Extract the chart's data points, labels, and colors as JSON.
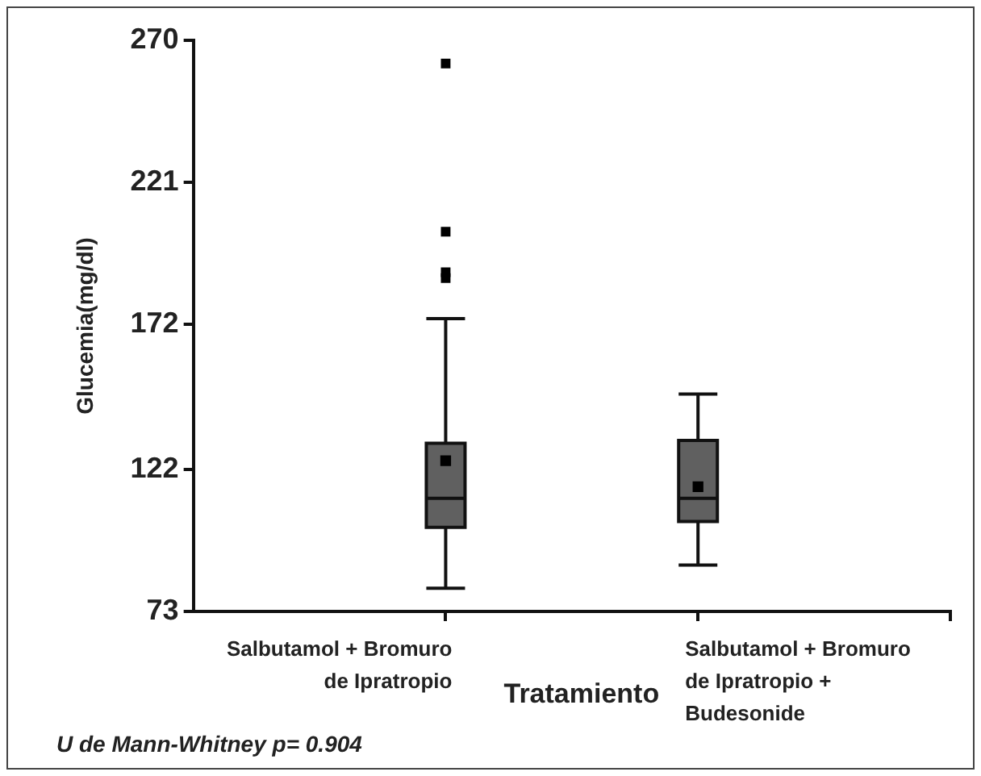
{
  "chart_data": {
    "type": "box",
    "ylabel": "Glucemia(mg/dl)",
    "xlabel": "Tratamiento",
    "categories": [
      "Salbutamol + Bromuro de Ipratropio",
      "Salbutamol + Bromuro de Ipratropio + Budesonide"
    ],
    "color": "#606060",
    "boxes": [
      {
        "low": 81,
        "q1": 102,
        "median": 112,
        "q3": 131,
        "high": 174,
        "mean": 125,
        "outliers": [
          262,
          204,
          190,
          188
        ]
      },
      {
        "low": 89,
        "q1": 104,
        "median": 112,
        "q3": 132,
        "high": 148,
        "mean": 116
      }
    ],
    "ylim": [
      73,
      270
    ],
    "yticks": [
      73,
      122,
      172,
      221,
      270
    ],
    "grid": false,
    "legend": false,
    "annotations": [
      "U de Mann-Whitney p= 0.904"
    ]
  }
}
